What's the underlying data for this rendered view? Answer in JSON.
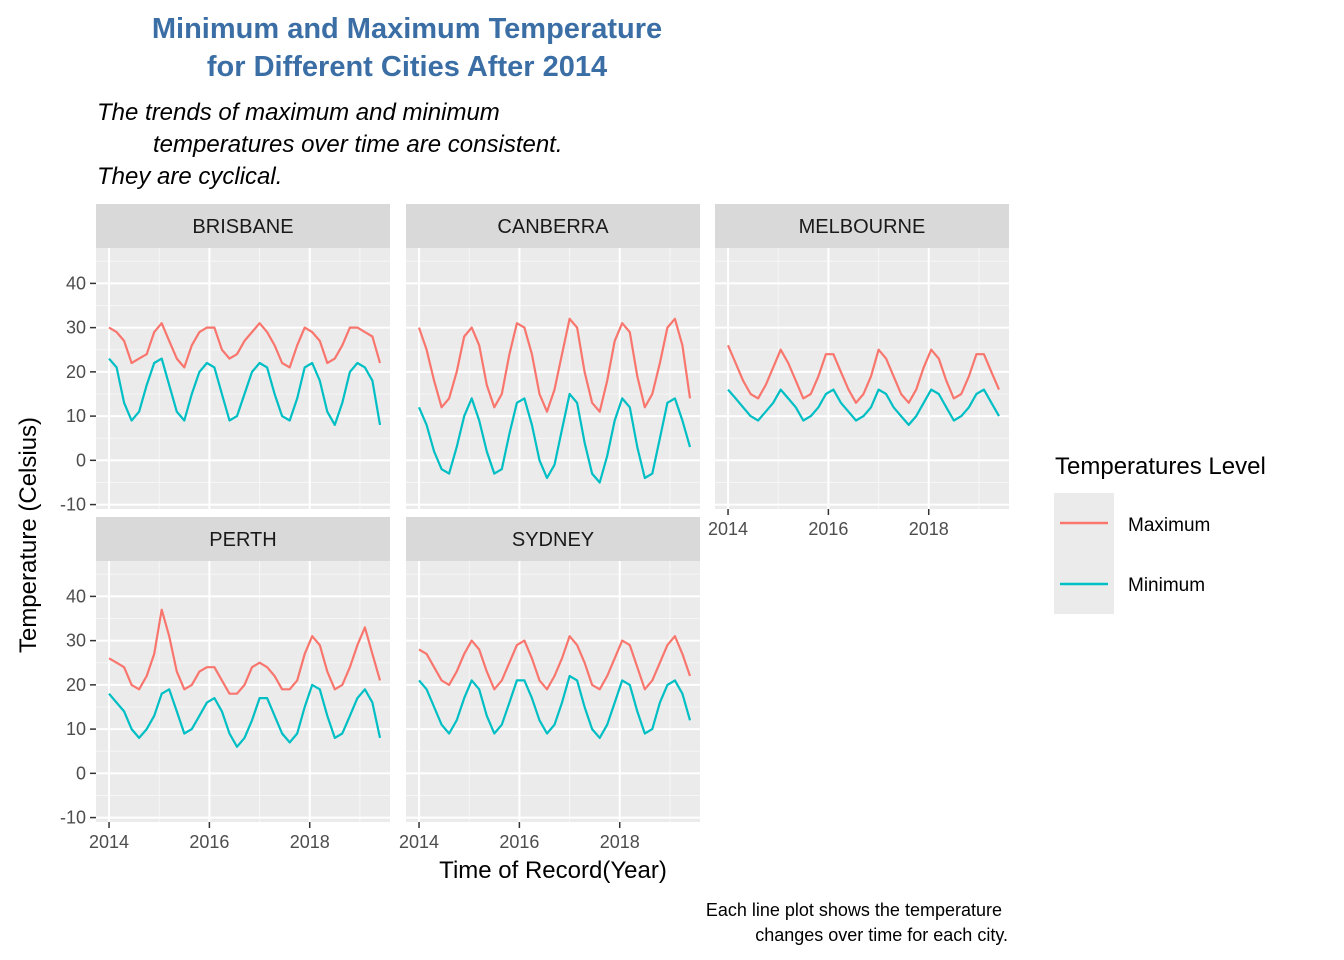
{
  "chart_data": {
    "type": "line",
    "title_lines": [
      "Minimum and Maximum Temperature",
      "for Different Cities After 2014"
    ],
    "title_color": "#3A6EA5",
    "subtitle_lines": [
      "The trends of maximum and minimum",
      "temperatures over time are consistent.",
      "They are cyclical."
    ],
    "xlabel": "Time of Record(Year)",
    "ylabel": "Temperature (Celsius)",
    "caption_lines": [
      "Each line plot shows the temperature",
      "changes over time for each city."
    ],
    "legend_title": "Temperatures Level",
    "legend_position": "right",
    "grid": true,
    "xlim": [
      2013.74,
      2019.6
    ],
    "ylim": [
      -11,
      48
    ],
    "x_ticks": [
      2014,
      2016,
      2018
    ],
    "x_tick_labels": [
      "2014",
      "2016",
      "2018"
    ],
    "y_ticks": [
      -10,
      0,
      10,
      20,
      30,
      40
    ],
    "y_tick_labels": [
      "-10",
      "0",
      "10",
      "20",
      "30",
      "40"
    ],
    "series": [
      {
        "name": "Maximum",
        "color": "#F8766D"
      },
      {
        "name": "Minimum",
        "color": "#00BFC4"
      }
    ],
    "panels": [
      {
        "city": "BRISBANE",
        "x": [
          2014.0,
          2014.15,
          2014.3,
          2014.45,
          2014.6,
          2014.75,
          2014.9,
          2015.05,
          2015.2,
          2015.35,
          2015.5,
          2015.65,
          2015.8,
          2015.95,
          2016.1,
          2016.25,
          2016.4,
          2016.55,
          2016.7,
          2016.85,
          2017.0,
          2017.15,
          2017.3,
          2017.45,
          2017.6,
          2017.75,
          2017.9,
          2018.05,
          2018.2,
          2018.35,
          2018.5,
          2018.65,
          2018.8,
          2018.95,
          2019.1,
          2019.25,
          2019.4
        ],
        "Maximum": [
          30,
          29,
          27,
          22,
          23,
          24,
          29,
          31,
          27,
          23,
          21,
          26,
          29,
          30,
          30,
          25,
          23,
          24,
          27,
          29,
          31,
          29,
          26,
          22,
          21,
          26,
          30,
          29,
          27,
          22,
          23,
          26,
          30,
          30,
          29,
          28,
          22
        ],
        "Minimum": [
          23,
          21,
          13,
          9,
          11,
          17,
          22,
          23,
          17,
          11,
          9,
          15,
          20,
          22,
          21,
          15,
          9,
          10,
          15,
          20,
          22,
          21,
          15,
          10,
          9,
          14,
          21,
          22,
          18,
          11,
          8,
          13,
          20,
          22,
          21,
          18,
          8
        ]
      },
      {
        "city": "CANBERRA",
        "x": [
          2014.0,
          2014.15,
          2014.3,
          2014.45,
          2014.6,
          2014.75,
          2014.9,
          2015.05,
          2015.2,
          2015.35,
          2015.5,
          2015.65,
          2015.8,
          2015.95,
          2016.1,
          2016.25,
          2016.4,
          2016.55,
          2016.7,
          2016.85,
          2017.0,
          2017.15,
          2017.3,
          2017.45,
          2017.6,
          2017.75,
          2017.9,
          2018.05,
          2018.2,
          2018.35,
          2018.5,
          2018.65,
          2018.8,
          2018.95,
          2019.1,
          2019.25,
          2019.4
        ],
        "Maximum": [
          30,
          25,
          18,
          12,
          14,
          20,
          28,
          30,
          26,
          17,
          12,
          15,
          24,
          31,
          30,
          24,
          15,
          11,
          16,
          24,
          32,
          30,
          20,
          13,
          11,
          18,
          27,
          31,
          29,
          19,
          12,
          15,
          22,
          30,
          32,
          26,
          14
        ],
        "Minimum": [
          12,
          8,
          2,
          -2,
          -3,
          3,
          10,
          14,
          9,
          2,
          -3,
          -2,
          6,
          13,
          14,
          8,
          0,
          -4,
          -1,
          7,
          15,
          13,
          4,
          -3,
          -5,
          1,
          9,
          14,
          12,
          3,
          -4,
          -3,
          5,
          13,
          14,
          9,
          3
        ]
      },
      {
        "city": "MELBOURNE",
        "x": [
          2014.0,
          2014.15,
          2014.3,
          2014.45,
          2014.6,
          2014.75,
          2014.9,
          2015.05,
          2015.2,
          2015.35,
          2015.5,
          2015.65,
          2015.8,
          2015.95,
          2016.1,
          2016.25,
          2016.4,
          2016.55,
          2016.7,
          2016.85,
          2017.0,
          2017.15,
          2017.3,
          2017.45,
          2017.6,
          2017.75,
          2017.9,
          2018.05,
          2018.2,
          2018.35,
          2018.5,
          2018.65,
          2018.8,
          2018.95,
          2019.1,
          2019.25,
          2019.4
        ],
        "Maximum": [
          26,
          22,
          18,
          15,
          14,
          17,
          21,
          25,
          22,
          18,
          14,
          15,
          19,
          24,
          24,
          20,
          16,
          13,
          15,
          19,
          25,
          23,
          19,
          15,
          13,
          16,
          21,
          25,
          23,
          18,
          14,
          15,
          19,
          24,
          24,
          20,
          16
        ],
        "Minimum": [
          16,
          14,
          12,
          10,
          9,
          11,
          13,
          16,
          14,
          12,
          9,
          10,
          12,
          15,
          16,
          13,
          11,
          9,
          10,
          12,
          16,
          15,
          12,
          10,
          8,
          10,
          13,
          16,
          15,
          12,
          9,
          10,
          12,
          15,
          16,
          13,
          10
        ]
      },
      {
        "city": "PERTH",
        "x": [
          2014.0,
          2014.15,
          2014.3,
          2014.45,
          2014.6,
          2014.75,
          2014.9,
          2015.05,
          2015.2,
          2015.35,
          2015.5,
          2015.65,
          2015.8,
          2015.95,
          2016.1,
          2016.25,
          2016.4,
          2016.55,
          2016.7,
          2016.85,
          2017.0,
          2017.15,
          2017.3,
          2017.45,
          2017.6,
          2017.75,
          2017.9,
          2018.05,
          2018.2,
          2018.35,
          2018.5,
          2018.65,
          2018.8,
          2018.95,
          2019.1,
          2019.25,
          2019.4
        ],
        "Maximum": [
          26,
          25,
          24,
          20,
          19,
          22,
          27,
          37,
          31,
          23,
          19,
          20,
          23,
          24,
          24,
          21,
          18,
          18,
          20,
          24,
          25,
          24,
          22,
          19,
          19,
          21,
          27,
          31,
          29,
          23,
          19,
          20,
          24,
          29,
          33,
          27,
          21
        ],
        "Minimum": [
          18,
          16,
          14,
          10,
          8,
          10,
          13,
          18,
          19,
          14,
          9,
          10,
          13,
          16,
          17,
          14,
          9,
          6,
          8,
          12,
          17,
          17,
          13,
          9,
          7,
          9,
          15,
          20,
          19,
          13,
          8,
          9,
          13,
          17,
          19,
          16,
          8
        ]
      },
      {
        "city": "SYDNEY",
        "x": [
          2014.0,
          2014.15,
          2014.3,
          2014.45,
          2014.6,
          2014.75,
          2014.9,
          2015.05,
          2015.2,
          2015.35,
          2015.5,
          2015.65,
          2015.8,
          2015.95,
          2016.1,
          2016.25,
          2016.4,
          2016.55,
          2016.7,
          2016.85,
          2017.0,
          2017.15,
          2017.3,
          2017.45,
          2017.6,
          2017.75,
          2017.9,
          2018.05,
          2018.2,
          2018.35,
          2018.5,
          2018.65,
          2018.8,
          2018.95,
          2019.1,
          2019.25,
          2019.4
        ],
        "Maximum": [
          28,
          27,
          24,
          21,
          20,
          23,
          27,
          30,
          28,
          23,
          19,
          21,
          25,
          29,
          30,
          26,
          21,
          19,
          22,
          26,
          31,
          29,
          25,
          20,
          19,
          22,
          26,
          30,
          29,
          24,
          19,
          21,
          25,
          29,
          31,
          27,
          22
        ],
        "Minimum": [
          21,
          19,
          15,
          11,
          9,
          12,
          17,
          21,
          19,
          13,
          9,
          11,
          16,
          21,
          21,
          17,
          12,
          9,
          11,
          16,
          22,
          21,
          15,
          10,
          8,
          11,
          16,
          21,
          20,
          14,
          9,
          10,
          16,
          20,
          21,
          18,
          12
        ]
      }
    ]
  }
}
